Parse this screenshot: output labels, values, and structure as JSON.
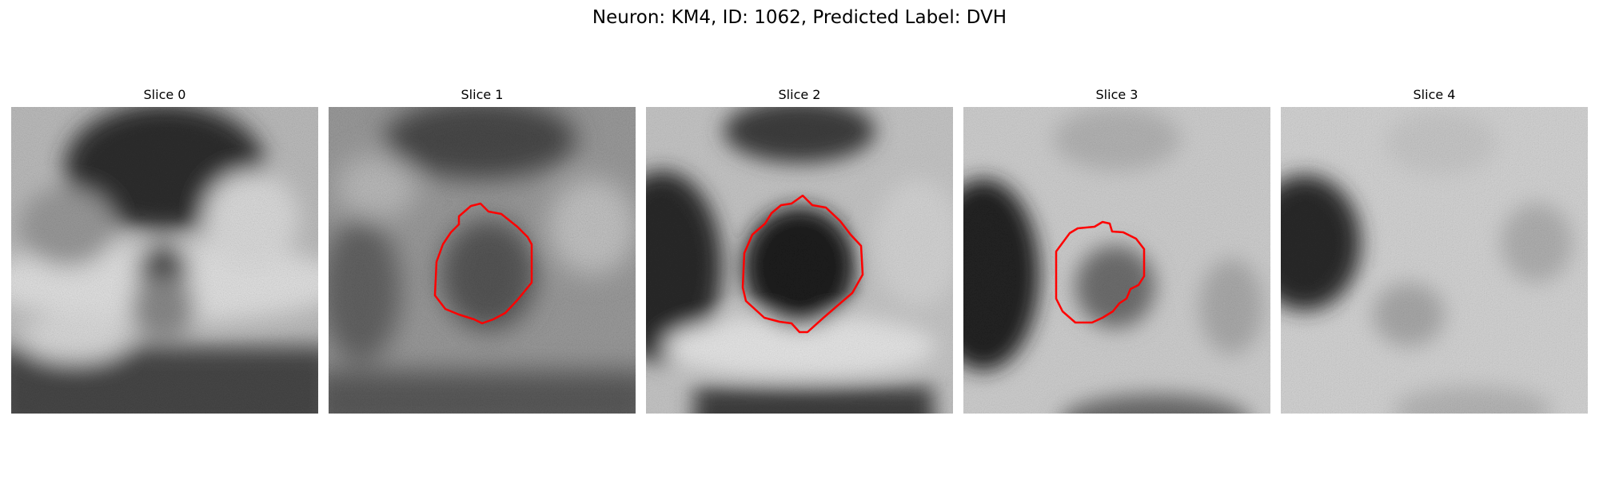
{
  "figure": {
    "title": "Neuron: KM4, ID: 1062, Predicted Label: DVH",
    "contour_color": "#ff0000"
  },
  "slices": [
    {
      "label": "Slice 0",
      "has_contour": false
    },
    {
      "label": "Slice 1",
      "has_contour": true
    },
    {
      "label": "Slice 2",
      "has_contour": true
    },
    {
      "label": "Slice 3",
      "has_contour": true
    },
    {
      "label": "Slice 4",
      "has_contour": false
    }
  ]
}
